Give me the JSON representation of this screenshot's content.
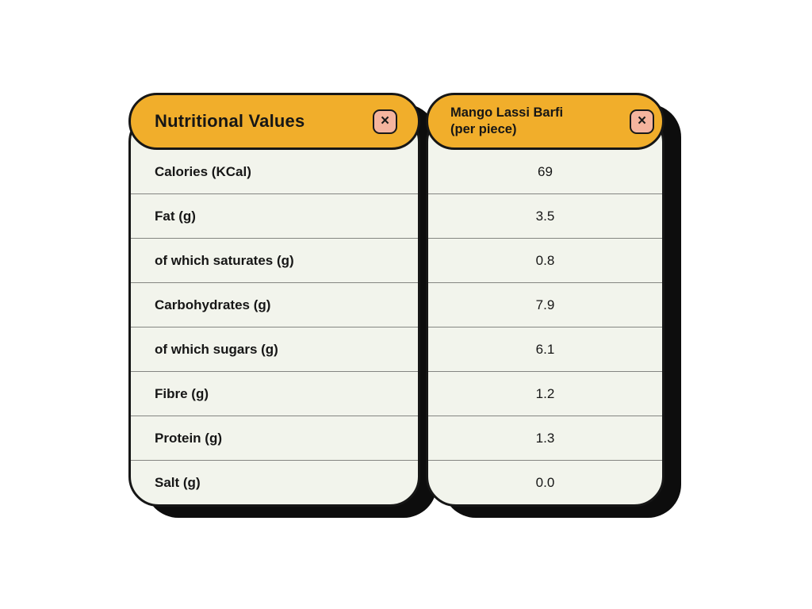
{
  "left_panel": {
    "title": "Nutritional Values",
    "close_glyph": "×"
  },
  "right_panel": {
    "title_line1": "Mango Lassi Barfi",
    "title_line2": "(per piece)",
    "close_glyph": "×"
  },
  "table": {
    "rows": [
      {
        "label": "Calories (KCal)",
        "value": "69"
      },
      {
        "label": "Fat (g)",
        "value": "3.5"
      },
      {
        "label": "of which saturates (g)",
        "value": "0.8"
      },
      {
        "label": "Carbohydrates (g)",
        "value": "7.9"
      },
      {
        "label": "of which sugars (g)",
        "value": "6.1"
      },
      {
        "label": "Fibre (g)",
        "value": "1.2"
      },
      {
        "label": "Protein (g)",
        "value": "1.3"
      },
      {
        "label": "Salt (g)",
        "value": "0.0"
      }
    ]
  },
  "colors": {
    "header_orange": "#F1AE2B",
    "close_salmon": "#F5B49E",
    "panel_bg": "#F2F4EC",
    "outline": "#161616",
    "shadow": "#0D0D0D",
    "page_bg": "#FFFFFF"
  }
}
